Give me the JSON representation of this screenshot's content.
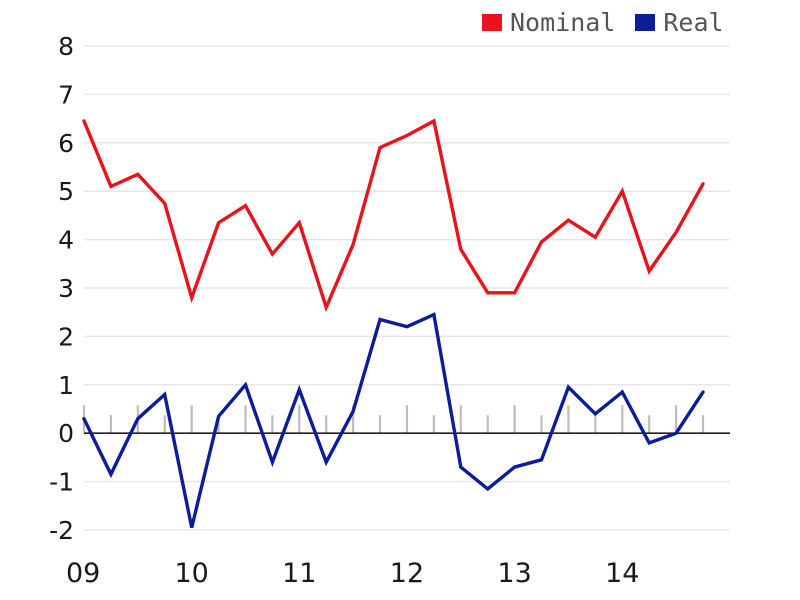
{
  "chart_data": {
    "type": "line",
    "title": "",
    "xlabel": "",
    "ylabel": "",
    "ylim": [
      -2,
      8
    ],
    "y_ticks": [
      "8",
      "7",
      "6",
      "5",
      "4",
      "3",
      "2",
      "1",
      "0",
      "-1",
      "-2"
    ],
    "y_tick_values": [
      8,
      7,
      6,
      5,
      4,
      3,
      2,
      1,
      0,
      -1,
      -2
    ],
    "x_tick_labels": [
      "09",
      "10",
      "11",
      "12",
      "13",
      "14"
    ],
    "x_tick_positions": [
      0,
      4,
      8,
      12,
      16,
      20
    ],
    "x_range": [
      0,
      23
    ],
    "grid": true,
    "legend_position": "top-right",
    "series": [
      {
        "name": "Nominal",
        "color": "#e8131b",
        "values": [
          6.45,
          5.1,
          5.35,
          4.75,
          2.8,
          4.35,
          4.7,
          3.7,
          4.35,
          2.6,
          3.9,
          5.9,
          6.15,
          6.45,
          3.8,
          2.9,
          2.9,
          3.95,
          4.4,
          4.05,
          5.0,
          3.35,
          4.15,
          5.15
        ]
      },
      {
        "name": "Real",
        "color": "#0d1c99",
        "values": [
          0.3,
          -0.85,
          0.3,
          0.8,
          -1.95,
          0.35,
          1.0,
          -0.6,
          0.9,
          -0.6,
          0.45,
          2.35,
          2.2,
          2.45,
          -0.7,
          -1.15,
          -0.7,
          -0.55,
          0.95,
          0.4,
          0.85,
          -0.2,
          0.0,
          0.85
        ]
      }
    ]
  }
}
